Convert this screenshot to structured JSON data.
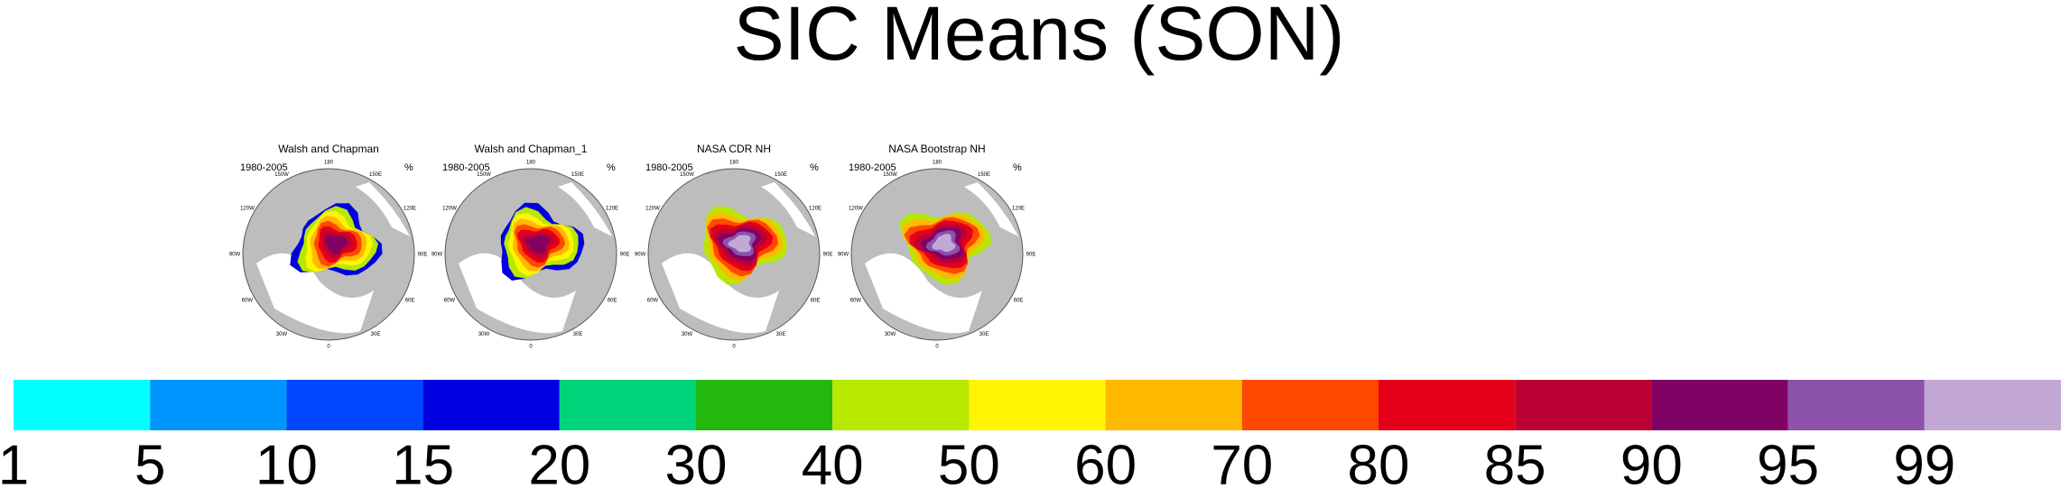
{
  "chart_data": {
    "type": "map",
    "title": "SIC Means (SON)",
    "panels": [
      {
        "title": "Walsh and Chapman",
        "period": "1980-2005",
        "units": "%"
      },
      {
        "title": "Walsh and Chapman_1",
        "period": "1980-2005",
        "units": "%"
      },
      {
        "title": "NASA CDR NH",
        "period": "1980-2005",
        "units": "%"
      },
      {
        "title": "NASA Bootstrap NH",
        "period": "1980-2005",
        "units": "%"
      }
    ],
    "lon_labels": [
      "180",
      "150E",
      "120E",
      "90E",
      "60E",
      "30E",
      "0",
      "30W",
      "60W",
      "90W",
      "120W",
      "150W"
    ],
    "colorbar": {
      "levels": [
        1,
        5,
        10,
        15,
        20,
        30,
        40,
        50,
        60,
        70,
        80,
        85,
        90,
        95,
        99
      ],
      "colors": [
        "#00ffff",
        "#0096ff",
        "#0046ff",
        "#0000e0",
        "#00d47a",
        "#22b80e",
        "#b8e800",
        "#fff500",
        "#ffb900",
        "#ff4800",
        "#e4001a",
        "#bb0035",
        "#800064",
        "#8c52ac",
        "#c3a8d6"
      ]
    }
  }
}
